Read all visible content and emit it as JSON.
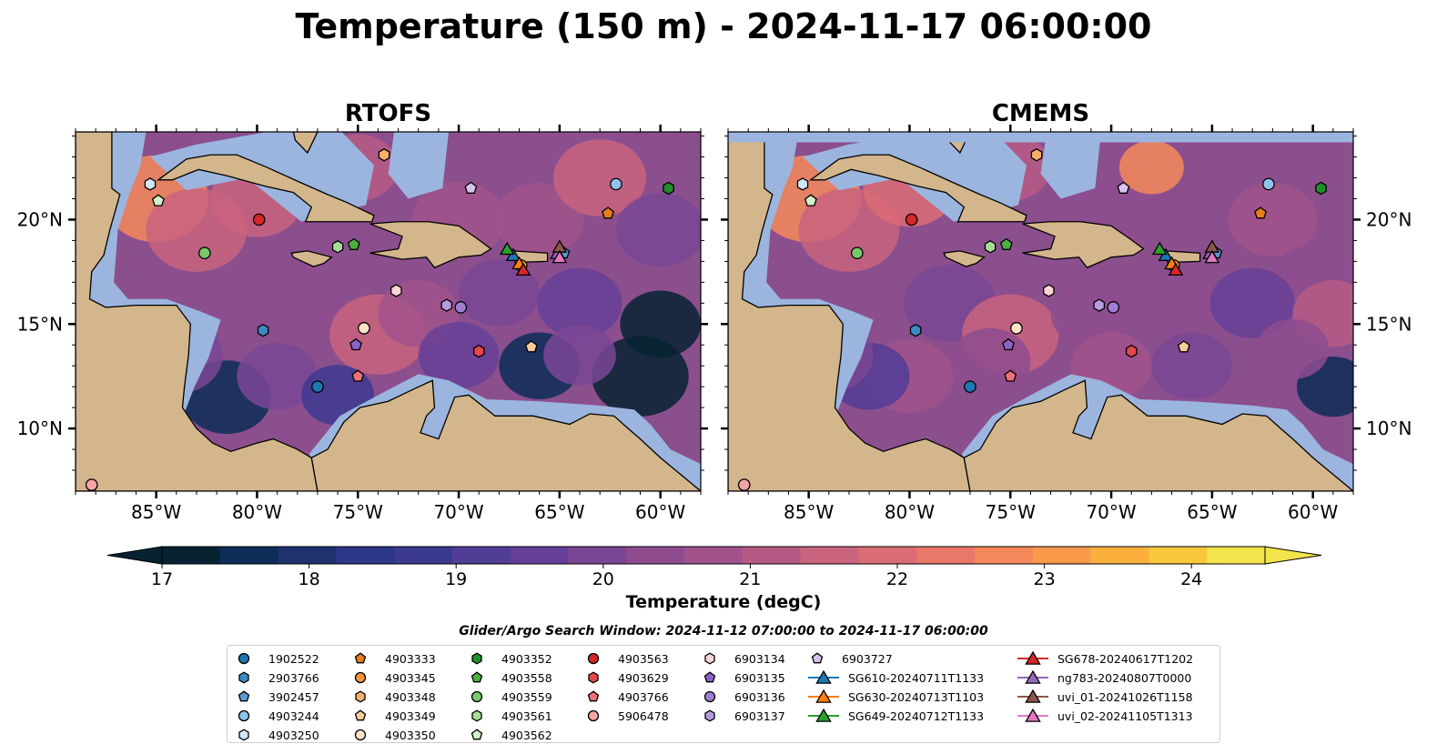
{
  "figure": {
    "title": "Temperature (150 m) - 2024-11-17 06:00:00",
    "panels": [
      "RTOFS",
      "CMEMS"
    ],
    "colorbar_label": "Temperature (degC)",
    "search_window": "Glider/Argo Search Window: 2024-11-12 07:00:00 to 2024-11-17 06:00:00"
  },
  "chart_data": {
    "type": "heatmap",
    "variable": "Temperature",
    "units": "degC",
    "depth": "150 m",
    "time": "2024-11-17 06:00:00",
    "panels": [
      "RTOFS",
      "CMEMS"
    ],
    "lon_range": [
      -89,
      -58
    ],
    "lat_range": [
      7,
      24.2
    ],
    "lon_ticks": [
      -85,
      -80,
      -75,
      -70,
      -65,
      -60
    ],
    "lon_tick_labels": [
      "85°W",
      "80°W",
      "75°W",
      "70°W",
      "65°W",
      "60°W"
    ],
    "lat_ticks": [
      10,
      15,
      20
    ],
    "lat_tick_labels": [
      "10°N",
      "15°N",
      "20°N"
    ],
    "colorbar": {
      "min": 17,
      "max": 24.5,
      "step": 0.5,
      "extend": "both",
      "ticks": [
        17,
        18,
        19,
        20,
        21,
        22,
        23,
        24
      ],
      "tick_labels": [
        "17",
        "18",
        "19",
        "20",
        "21",
        "22",
        "23",
        "24"
      ],
      "colors": [
        "#062233",
        "#0c2d57",
        "#1e3270",
        "#2c3789",
        "#3c3990",
        "#513c96",
        "#663f98",
        "#7a4694",
        "#8e4c8f",
        "#a1528b",
        "#b65a85",
        "#c9637e",
        "#db6c74",
        "#ea7868",
        "#f5885a",
        "#f99a4b",
        "#fbb03d",
        "#f8c83a",
        "#f2e44a"
      ],
      "under_color": "#062233",
      "over_color": "#f2e44a",
      "land_color": "#d3b68b",
      "shelf_color": "#9bb5df"
    },
    "markers": [
      {
        "name": "1902522",
        "shape": "circle",
        "color": "#1f77b4",
        "lon": -77.0,
        "lat": 12.0
      },
      {
        "name": "2903766",
        "shape": "hexagon",
        "color": "#3b8bc2",
        "lon": -79.7,
        "lat": 14.7
      },
      {
        "name": "3902457",
        "shape": "pentagon",
        "color": "#5b9bd0",
        "lon": -64.8,
        "lat": 18.4
      },
      {
        "name": "4903244",
        "shape": "circle",
        "color": "#8ec2e8",
        "lon": -62.2,
        "lat": 21.7
      },
      {
        "name": "4903250",
        "shape": "hexagon",
        "color": "#cfe6f7",
        "lon": -85.3,
        "lat": 21.7
      },
      {
        "name": "4903333",
        "shape": "pentagon",
        "color": "#e67e1a",
        "lon": -62.6,
        "lat": 20.3
      },
      {
        "name": "4903345",
        "shape": "circle",
        "color": "#f2953d",
        "lon": -66.9,
        "lat": 17.8
      },
      {
        "name": "4903348",
        "shape": "hexagon",
        "color": "#f6b06b",
        "lon": -73.7,
        "lat": 23.1
      },
      {
        "name": "4903349",
        "shape": "pentagon",
        "color": "#f9cc9a",
        "lon": -66.4,
        "lat": 13.9
      },
      {
        "name": "4903350",
        "shape": "circle",
        "color": "#fde4c8",
        "lon": -74.7,
        "lat": 14.8
      },
      {
        "name": "4903352",
        "shape": "hexagon",
        "color": "#1f8f2a",
        "lon": -59.6,
        "lat": 21.5
      },
      {
        "name": "4903558",
        "shape": "pentagon",
        "color": "#4cae41",
        "lon": -75.2,
        "lat": 18.8
      },
      {
        "name": "4903559",
        "shape": "circle",
        "color": "#7ac76a",
        "lon": -82.6,
        "lat": 18.4
      },
      {
        "name": "4903561",
        "shape": "hexagon",
        "color": "#a6dc96",
        "lon": -76.0,
        "lat": 18.7
      },
      {
        "name": "4903562",
        "shape": "pentagon",
        "color": "#d4f0c8",
        "lon": -84.9,
        "lat": 20.9
      },
      {
        "name": "4903563",
        "shape": "circle",
        "color": "#d62728",
        "lon": -79.9,
        "lat": 20.0
      },
      {
        "name": "4903629",
        "shape": "hexagon",
        "color": "#e3494c",
        "lon": -69.0,
        "lat": 13.7
      },
      {
        "name": "4903766",
        "shape": "pentagon",
        "color": "#ed7176",
        "lon": -75.0,
        "lat": 12.5
      },
      {
        "name": "5906478",
        "shape": "circle",
        "color": "#f5a3a3",
        "lon": -88.2,
        "lat": 7.3
      },
      {
        "name": "6903134",
        "shape": "hexagon",
        "color": "#fad4d4",
        "lon": -73.1,
        "lat": 16.6
      },
      {
        "name": "6903135",
        "shape": "pentagon",
        "color": "#8a63c6",
        "lon": -75.1,
        "lat": 14.0
      },
      {
        "name": "6903136",
        "shape": "circle",
        "color": "#a07fd3",
        "lon": -69.9,
        "lat": 15.8
      },
      {
        "name": "6903137",
        "shape": "hexagon",
        "color": "#b79ce0",
        "lon": -70.6,
        "lat": 15.9
      },
      {
        "name": "6903727",
        "shape": "pentagon",
        "color": "#d6c3f0",
        "lon": -69.4,
        "lat": 21.5
      },
      {
        "name": "SG610-20240711T1133",
        "shape": "triangle",
        "color": "#1f77b4",
        "lon": -67.3,
        "lat": 18.3
      },
      {
        "name": "SG630-20240713T1103",
        "shape": "triangle",
        "color": "#ff7f0e",
        "lon": -67.0,
        "lat": 17.9
      },
      {
        "name": "SG649-20240712T1133",
        "shape": "triangle",
        "color": "#2ca02c",
        "lon": -67.6,
        "lat": 18.6
      },
      {
        "name": "SG678-20240617T1202",
        "shape": "triangle",
        "color": "#d62728",
        "lon": -66.8,
        "lat": 17.6
      },
      {
        "name": "ng783-20240807T0000",
        "shape": "triangle",
        "color": "#9467bd",
        "lon": -65.1,
        "lat": 18.4
      },
      {
        "name": "uvi_01-20241026T1158",
        "shape": "triangle",
        "color": "#8c564b",
        "lon": -65.0,
        "lat": 18.7
      },
      {
        "name": "uvi_02-20241105T1313",
        "shape": "triangle",
        "color": "#e377c2",
        "lon": -65.0,
        "lat": 18.2
      }
    ]
  }
}
